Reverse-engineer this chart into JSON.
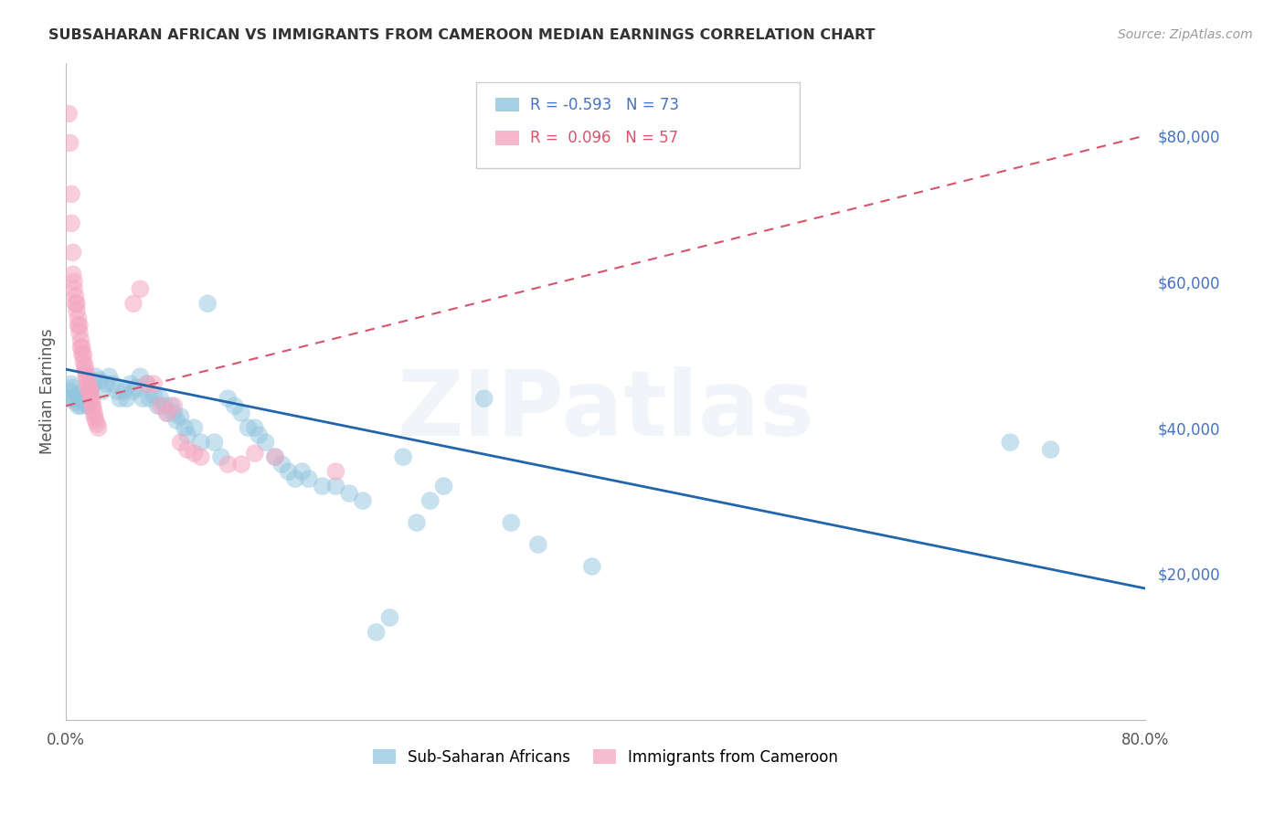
{
  "title": "SUBSAHARAN AFRICAN VS IMMIGRANTS FROM CAMEROON MEDIAN EARNINGS CORRELATION CHART",
  "source": "Source: ZipAtlas.com",
  "ylabel": "Median Earnings",
  "right_yticks": [
    20000,
    40000,
    60000,
    80000
  ],
  "right_yticklabels": [
    "$20,000",
    "$40,000",
    "$60,000",
    "$80,000"
  ],
  "watermark": "ZIPatlas",
  "legend_label_blue": "Sub-Saharan Africans",
  "legend_label_pink": "Immigrants from Cameroon",
  "blue_color": "#92c5de",
  "pink_color": "#f4a6c0",
  "line_blue": "#2166ac",
  "line_pink": "#d9536a",
  "title_color": "#333333",
  "source_color": "#999999",
  "right_tick_color": "#4472c4",
  "grid_color": "#cccccc",
  "xmin": 0.0,
  "xmax": 0.8,
  "ymin": 0,
  "ymax": 90000,
  "blue_scatter": [
    [
      0.002,
      44000
    ],
    [
      0.003,
      45000
    ],
    [
      0.004,
      46000
    ],
    [
      0.005,
      45500
    ],
    [
      0.006,
      44000
    ],
    [
      0.007,
      43500
    ],
    [
      0.008,
      44500
    ],
    [
      0.009,
      43000
    ],
    [
      0.01,
      44000
    ],
    [
      0.011,
      43000
    ],
    [
      0.012,
      44000
    ],
    [
      0.013,
      43500
    ],
    [
      0.015,
      44000
    ],
    [
      0.016,
      43000
    ],
    [
      0.018,
      45000
    ],
    [
      0.02,
      46000
    ],
    [
      0.022,
      47000
    ],
    [
      0.025,
      46500
    ],
    [
      0.027,
      45000
    ],
    [
      0.03,
      46000
    ],
    [
      0.032,
      47000
    ],
    [
      0.035,
      46000
    ],
    [
      0.038,
      45000
    ],
    [
      0.04,
      44000
    ],
    [
      0.043,
      45000
    ],
    [
      0.045,
      44000
    ],
    [
      0.048,
      46000
    ],
    [
      0.05,
      45000
    ],
    [
      0.052,
      45500
    ],
    [
      0.055,
      47000
    ],
    [
      0.057,
      44000
    ],
    [
      0.06,
      46000
    ],
    [
      0.062,
      44000
    ],
    [
      0.065,
      44500
    ],
    [
      0.068,
      43000
    ],
    [
      0.07,
      44000
    ],
    [
      0.073,
      43000
    ],
    [
      0.075,
      42000
    ],
    [
      0.078,
      43000
    ],
    [
      0.08,
      42000
    ],
    [
      0.082,
      41000
    ],
    [
      0.085,
      41500
    ],
    [
      0.088,
      40000
    ],
    [
      0.09,
      39000
    ],
    [
      0.095,
      40000
    ],
    [
      0.1,
      38000
    ],
    [
      0.105,
      57000
    ],
    [
      0.11,
      38000
    ],
    [
      0.115,
      36000
    ],
    [
      0.12,
      44000
    ],
    [
      0.125,
      43000
    ],
    [
      0.13,
      42000
    ],
    [
      0.135,
      40000
    ],
    [
      0.14,
      40000
    ],
    [
      0.143,
      39000
    ],
    [
      0.148,
      38000
    ],
    [
      0.155,
      36000
    ],
    [
      0.16,
      35000
    ],
    [
      0.165,
      34000
    ],
    [
      0.17,
      33000
    ],
    [
      0.175,
      34000
    ],
    [
      0.18,
      33000
    ],
    [
      0.19,
      32000
    ],
    [
      0.2,
      32000
    ],
    [
      0.21,
      31000
    ],
    [
      0.22,
      30000
    ],
    [
      0.23,
      12000
    ],
    [
      0.24,
      14000
    ],
    [
      0.25,
      36000
    ],
    [
      0.26,
      27000
    ],
    [
      0.27,
      30000
    ],
    [
      0.28,
      32000
    ],
    [
      0.31,
      44000
    ],
    [
      0.33,
      27000
    ],
    [
      0.35,
      24000
    ],
    [
      0.39,
      21000
    ],
    [
      0.7,
      38000
    ],
    [
      0.73,
      37000
    ]
  ],
  "pink_scatter": [
    [
      0.002,
      83000
    ],
    [
      0.003,
      79000
    ],
    [
      0.004,
      72000
    ],
    [
      0.004,
      68000
    ],
    [
      0.005,
      64000
    ],
    [
      0.005,
      61000
    ],
    [
      0.006,
      60000
    ],
    [
      0.006,
      59000
    ],
    [
      0.007,
      58000
    ],
    [
      0.007,
      57000
    ],
    [
      0.008,
      57000
    ],
    [
      0.008,
      56000
    ],
    [
      0.009,
      55000
    ],
    [
      0.009,
      54000
    ],
    [
      0.01,
      54000
    ],
    [
      0.01,
      53000
    ],
    [
      0.011,
      52000
    ],
    [
      0.011,
      51000
    ],
    [
      0.012,
      51000
    ],
    [
      0.012,
      50000
    ],
    [
      0.013,
      50000
    ],
    [
      0.013,
      49000
    ],
    [
      0.014,
      48500
    ],
    [
      0.014,
      48000
    ],
    [
      0.015,
      47500
    ],
    [
      0.015,
      47000
    ],
    [
      0.016,
      46500
    ],
    [
      0.016,
      46000
    ],
    [
      0.017,
      45500
    ],
    [
      0.017,
      45000
    ],
    [
      0.018,
      45000
    ],
    [
      0.018,
      44500
    ],
    [
      0.019,
      44000
    ],
    [
      0.019,
      43500
    ],
    [
      0.02,
      43000
    ],
    [
      0.02,
      42500
    ],
    [
      0.021,
      42000
    ],
    [
      0.021,
      41500
    ],
    [
      0.022,
      41000
    ],
    [
      0.023,
      40500
    ],
    [
      0.024,
      40000
    ],
    [
      0.05,
      57000
    ],
    [
      0.055,
      59000
    ],
    [
      0.06,
      46000
    ],
    [
      0.065,
      46000
    ],
    [
      0.07,
      43000
    ],
    [
      0.075,
      42000
    ],
    [
      0.08,
      43000
    ],
    [
      0.085,
      38000
    ],
    [
      0.09,
      37000
    ],
    [
      0.095,
      36500
    ],
    [
      0.1,
      36000
    ],
    [
      0.12,
      35000
    ],
    [
      0.13,
      35000
    ],
    [
      0.14,
      36500
    ],
    [
      0.155,
      36000
    ],
    [
      0.2,
      34000
    ]
  ],
  "blue_trend_x": [
    0.0,
    0.8
  ],
  "blue_trend_y": [
    48000,
    18000
  ],
  "pink_trend_x": [
    0.0,
    0.8
  ],
  "pink_trend_y": [
    43000,
    80000
  ]
}
